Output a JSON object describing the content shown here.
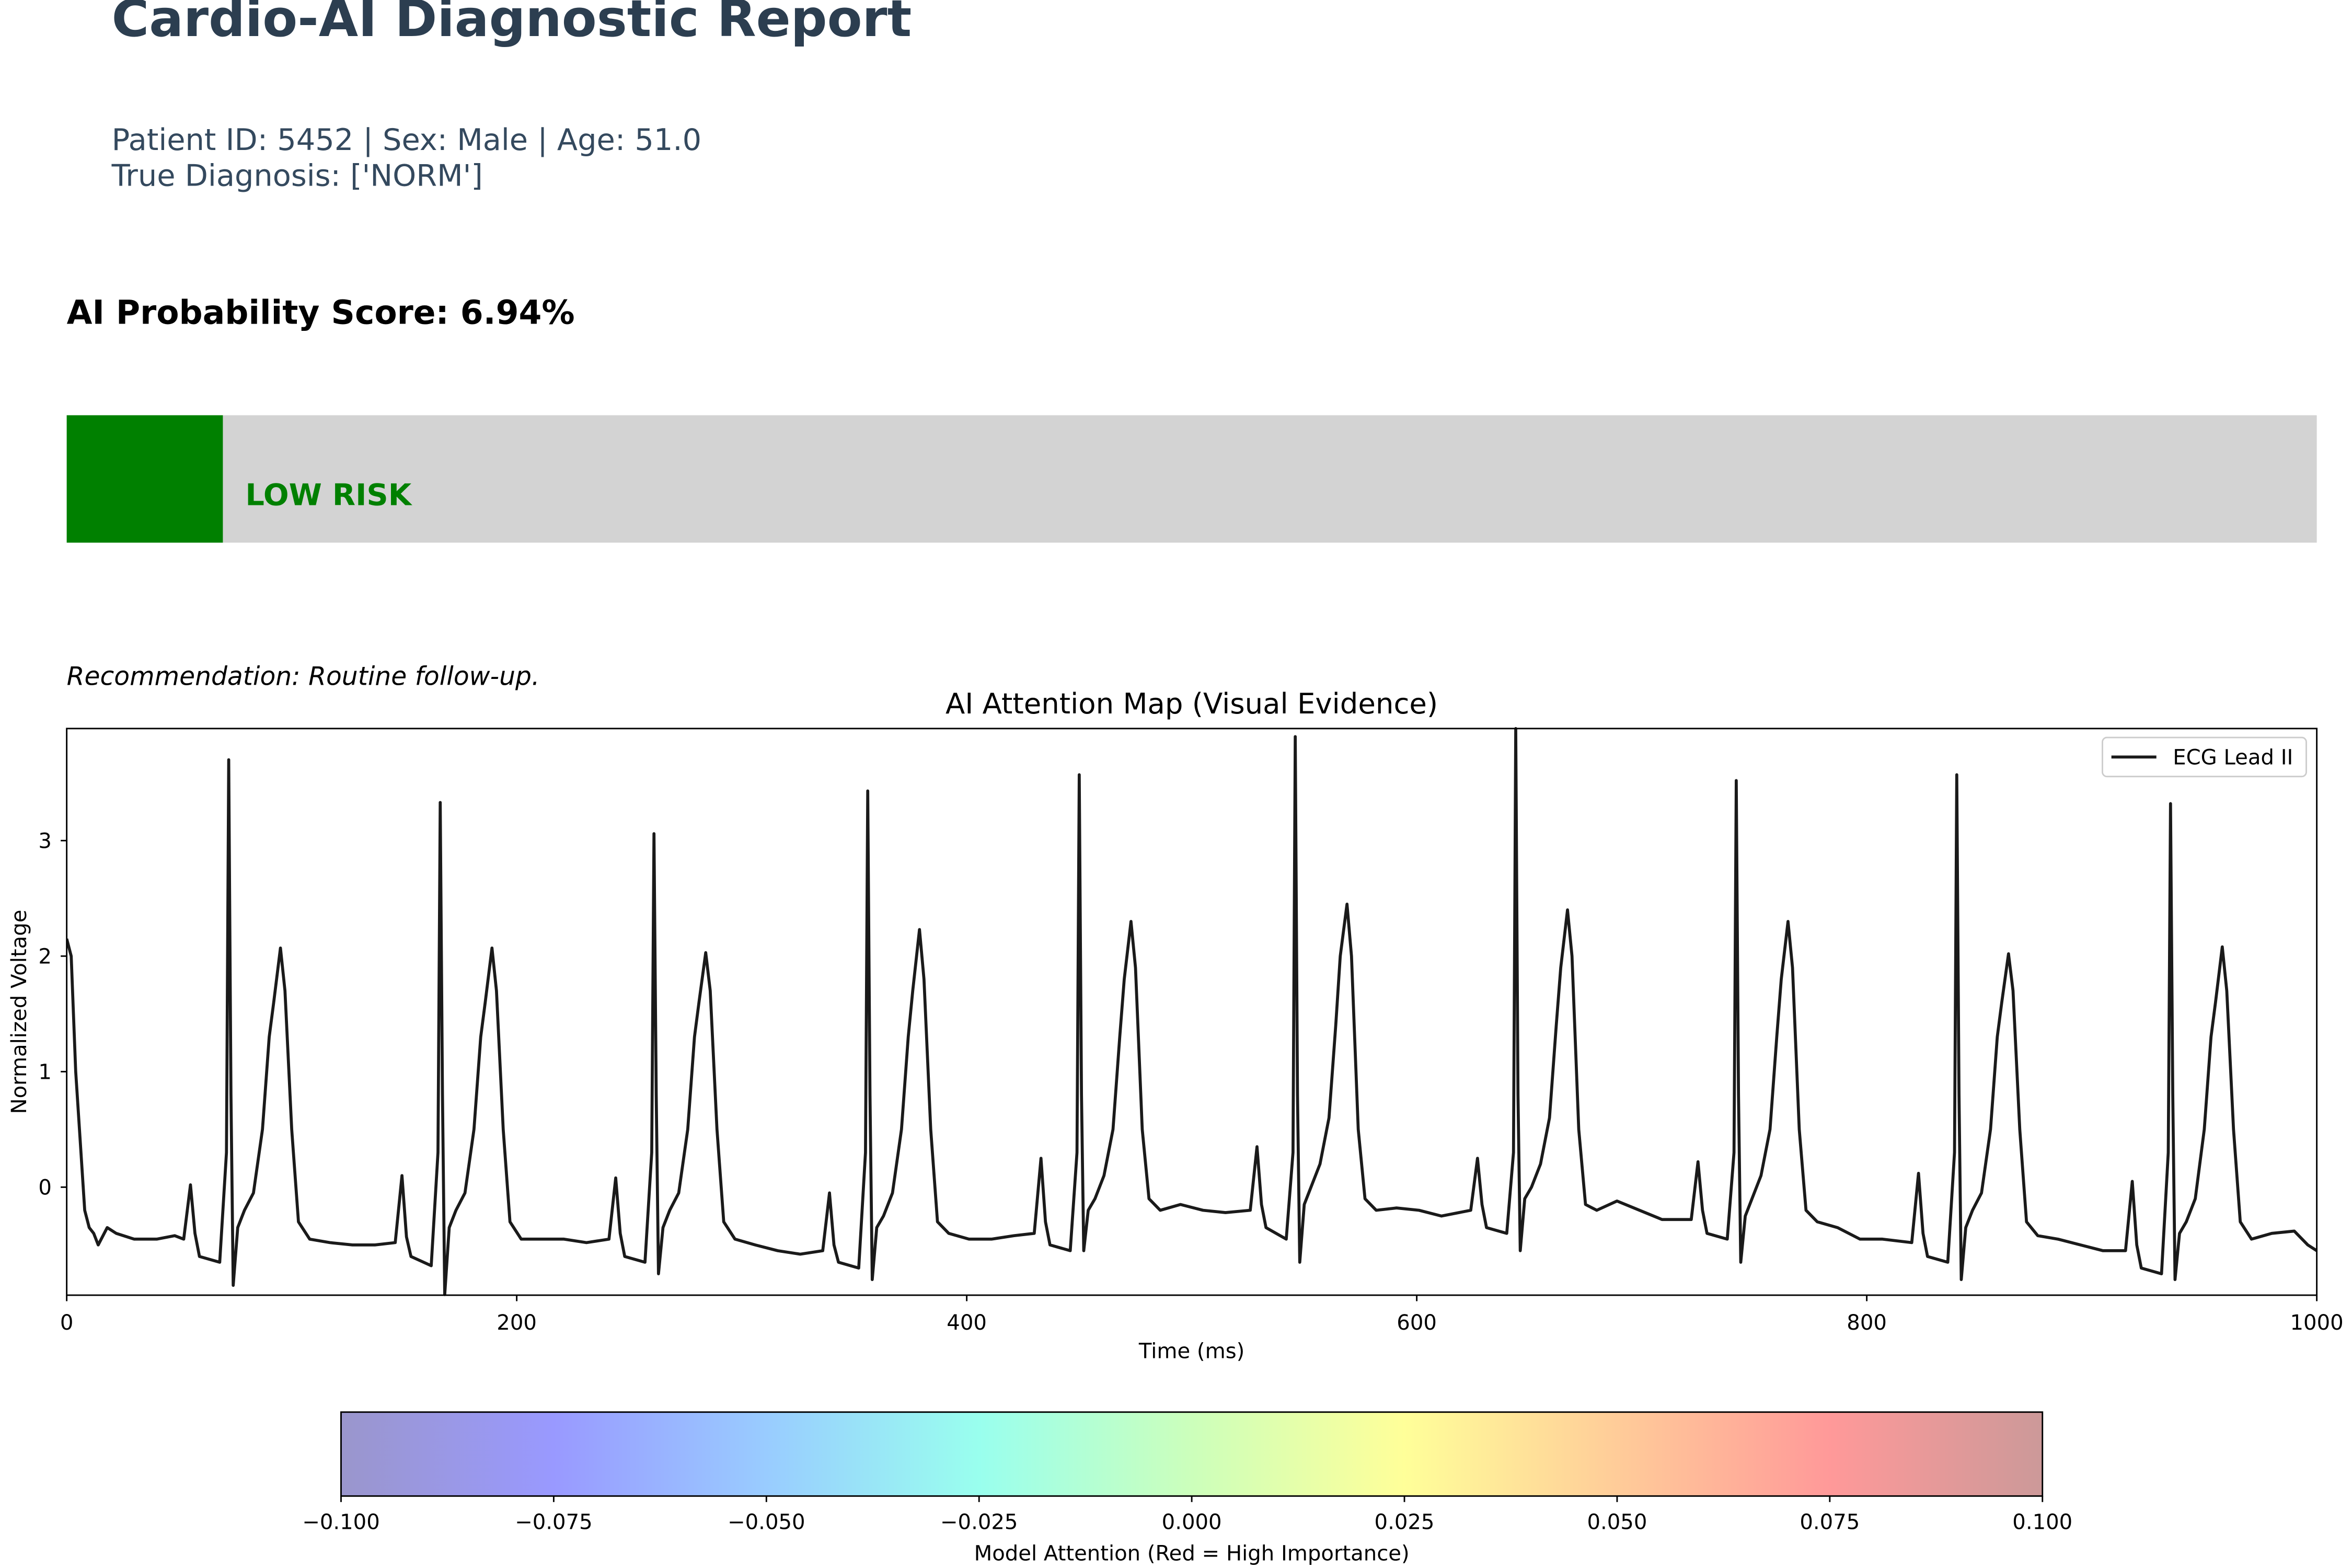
{
  "title": "Cardio-AI Diagnostic Report",
  "patient_info": "Patient ID: 5452 | Sex: Male | Age: 51.0",
  "true_diagnosis": "True Diagnosis: ['NORM']",
  "recommendation": "Recommendation: Routine follow-up.",
  "chart_data": [
    {
      "type": "progress",
      "title": "AI Probability Score: 6.94%",
      "values": [
        6.94
      ],
      "xlim": [
        0,
        100
      ],
      "label": "LOW RISK",
      "color": "#008000",
      "track_color": "#d3d3d3"
    },
    {
      "type": "line",
      "title": "AI Attention Map (Visual Evidence)",
      "xlabel": "Time (ms)",
      "ylabel": "Normalized Voltage",
      "xlim": [
        0,
        1000
      ],
      "ylim": [
        -0.935,
        3.97
      ],
      "xticks": [
        0,
        200,
        400,
        600,
        800,
        1000
      ],
      "yticks": [
        0,
        1,
        2,
        3
      ],
      "legend": "upper right",
      "x": [
        0,
        2,
        4,
        6,
        8,
        10,
        12,
        14,
        18,
        22,
        30,
        40,
        48,
        52,
        55,
        57,
        59,
        68,
        71,
        72,
        73,
        74,
        76,
        79,
        83,
        87,
        90,
        92,
        95,
        97,
        100,
        103,
        108,
        117,
        127,
        137,
        146,
        149,
        151,
        153,
        162,
        165,
        166,
        167,
        168,
        170,
        173,
        177,
        181,
        184,
        186,
        189,
        191,
        194,
        197,
        202,
        211,
        221,
        231,
        241,
        244,
        246,
        248,
        257,
        260,
        261,
        262,
        263,
        265,
        268,
        272,
        276,
        279,
        281,
        284,
        286,
        289,
        292,
        297,
        306,
        316,
        326,
        336,
        339,
        341,
        343,
        352,
        355,
        356,
        357,
        358,
        360,
        363,
        367,
        371,
        374,
        376,
        379,
        381,
        384,
        387,
        392,
        401,
        411,
        421,
        430,
        433,
        435,
        437,
        446,
        449,
        450,
        451,
        452,
        454,
        457,
        461,
        465,
        468,
        470,
        473,
        475,
        478,
        481,
        486,
        495,
        505,
        515,
        526,
        529,
        531,
        533,
        542,
        545,
        546,
        547,
        548,
        550,
        553,
        557,
        561,
        564,
        566,
        569,
        571,
        574,
        577,
        582,
        591,
        601,
        611,
        624,
        627,
        629,
        631,
        640,
        643,
        644,
        645,
        646,
        648,
        651,
        655,
        659,
        662,
        664,
        667,
        669,
        672,
        675,
        680,
        689,
        699,
        709,
        722,
        725,
        727,
        729,
        738,
        741,
        742,
        743,
        744,
        746,
        749,
        753,
        757,
        760,
        762,
        765,
        767,
        770,
        773,
        778,
        787,
        797,
        807,
        820,
        823,
        825,
        827,
        836,
        839,
        840,
        841,
        842,
        844,
        847,
        851,
        855,
        858,
        860,
        863,
        865,
        868,
        871,
        876,
        885,
        895,
        905,
        915,
        918,
        920,
        922,
        931,
        934,
        935,
        936,
        937,
        939,
        942,
        946,
        950,
        953,
        955,
        958,
        960,
        963,
        966,
        971,
        980,
        990,
        996,
        1000
      ],
      "series": [
        {
          "name": "ECG Lead II",
          "color": "#1a1a1a",
          "values": [
            2.15,
            2.0,
            1.0,
            0.4,
            -0.2,
            -0.35,
            -0.4,
            -0.5,
            -0.35,
            -0.4,
            -0.45,
            -0.45,
            -0.42,
            -0.45,
            0.02,
            -0.4,
            -0.6,
            -0.65,
            0.3,
            3.7,
            0.8,
            -0.85,
            -0.35,
            -0.2,
            -0.05,
            0.5,
            1.3,
            1.6,
            2.07,
            1.7,
            0.5,
            -0.3,
            -0.45,
            -0.48,
            -0.5,
            -0.5,
            -0.48,
            0.1,
            -0.43,
            -0.6,
            -0.68,
            0.3,
            3.33,
            0.8,
            -0.93,
            -0.35,
            -0.2,
            -0.05,
            0.5,
            1.3,
            1.6,
            2.07,
            1.7,
            0.5,
            -0.3,
            -0.45,
            -0.45,
            -0.45,
            -0.48,
            -0.45,
            0.08,
            -0.4,
            -0.6,
            -0.65,
            0.3,
            3.06,
            0.8,
            -0.75,
            -0.35,
            -0.2,
            -0.05,
            0.5,
            1.3,
            1.6,
            2.03,
            1.7,
            0.5,
            -0.3,
            -0.45,
            -0.5,
            -0.55,
            -0.58,
            -0.55,
            -0.05,
            -0.5,
            -0.65,
            -0.7,
            0.3,
            3.43,
            0.8,
            -0.8,
            -0.35,
            -0.25,
            -0.05,
            0.5,
            1.3,
            1.7,
            2.23,
            1.8,
            0.5,
            -0.3,
            -0.4,
            -0.45,
            -0.45,
            -0.42,
            -0.4,
            0.25,
            -0.3,
            -0.5,
            -0.55,
            0.3,
            3.57,
            0.8,
            -0.55,
            -0.2,
            -0.1,
            0.1,
            0.5,
            1.3,
            1.8,
            2.3,
            1.9,
            0.5,
            -0.1,
            -0.2,
            -0.15,
            -0.2,
            -0.22,
            -0.2,
            0.35,
            -0.15,
            -0.35,
            -0.45,
            0.3,
            3.9,
            0.8,
            -0.65,
            -0.15,
            0.0,
            0.2,
            0.6,
            1.4,
            2.0,
            2.45,
            2.0,
            0.5,
            -0.1,
            -0.2,
            -0.18,
            -0.2,
            -0.25,
            -0.2,
            0.25,
            -0.15,
            -0.35,
            -0.4,
            0.3,
            3.97,
            0.8,
            -0.55,
            -0.1,
            0.0,
            0.2,
            0.6,
            1.4,
            1.9,
            2.4,
            2.0,
            0.5,
            -0.15,
            -0.2,
            -0.12,
            -0.2,
            -0.28,
            -0.28,
            0.22,
            -0.2,
            -0.4,
            -0.45,
            0.3,
            3.52,
            0.8,
            -0.65,
            -0.25,
            -0.1,
            0.1,
            0.5,
            1.3,
            1.8,
            2.3,
            1.9,
            0.5,
            -0.2,
            -0.3,
            -0.35,
            -0.45,
            -0.45,
            -0.48,
            0.12,
            -0.4,
            -0.6,
            -0.65,
            0.3,
            3.57,
            0.8,
            -0.8,
            -0.35,
            -0.2,
            -0.05,
            0.5,
            1.3,
            1.6,
            2.02,
            1.7,
            0.5,
            -0.3,
            -0.42,
            -0.45,
            -0.5,
            -0.55,
            -0.55,
            0.05,
            -0.5,
            -0.7,
            -0.75,
            0.3,
            3.32,
            0.8,
            -0.8,
            -0.4,
            -0.3,
            -0.1,
            0.5,
            1.3,
            1.6,
            2.08,
            1.7,
            0.5,
            -0.3,
            -0.45,
            -0.4,
            -0.38,
            -0.5,
            -0.55
          ]
        }
      ]
    },
    {
      "type": "colorbar",
      "xlabel": "Model Attention (Red = High Importance)",
      "xlim": [
        -0.1,
        0.1
      ],
      "xticks": [
        {
          "value": -0.1,
          "label": "−0.100"
        },
        {
          "value": -0.075,
          "label": "−0.075"
        },
        {
          "value": -0.05,
          "label": "−0.050"
        },
        {
          "value": -0.025,
          "label": "−0.025"
        },
        {
          "value": 0,
          "label": "0.000"
        },
        {
          "value": 0.025,
          "label": "0.025"
        },
        {
          "value": 0.05,
          "label": "0.050"
        },
        {
          "value": 0.075,
          "label": "0.075"
        },
        {
          "value": 0.1,
          "label": "0.100"
        }
      ],
      "colormap": [
        "#9a96cc",
        "#9999ff",
        "#99ccff",
        "#99ffee",
        "#ccffbb",
        "#ffff99",
        "#ffcc99",
        "#ff9999",
        "#cc9999"
      ]
    }
  ]
}
